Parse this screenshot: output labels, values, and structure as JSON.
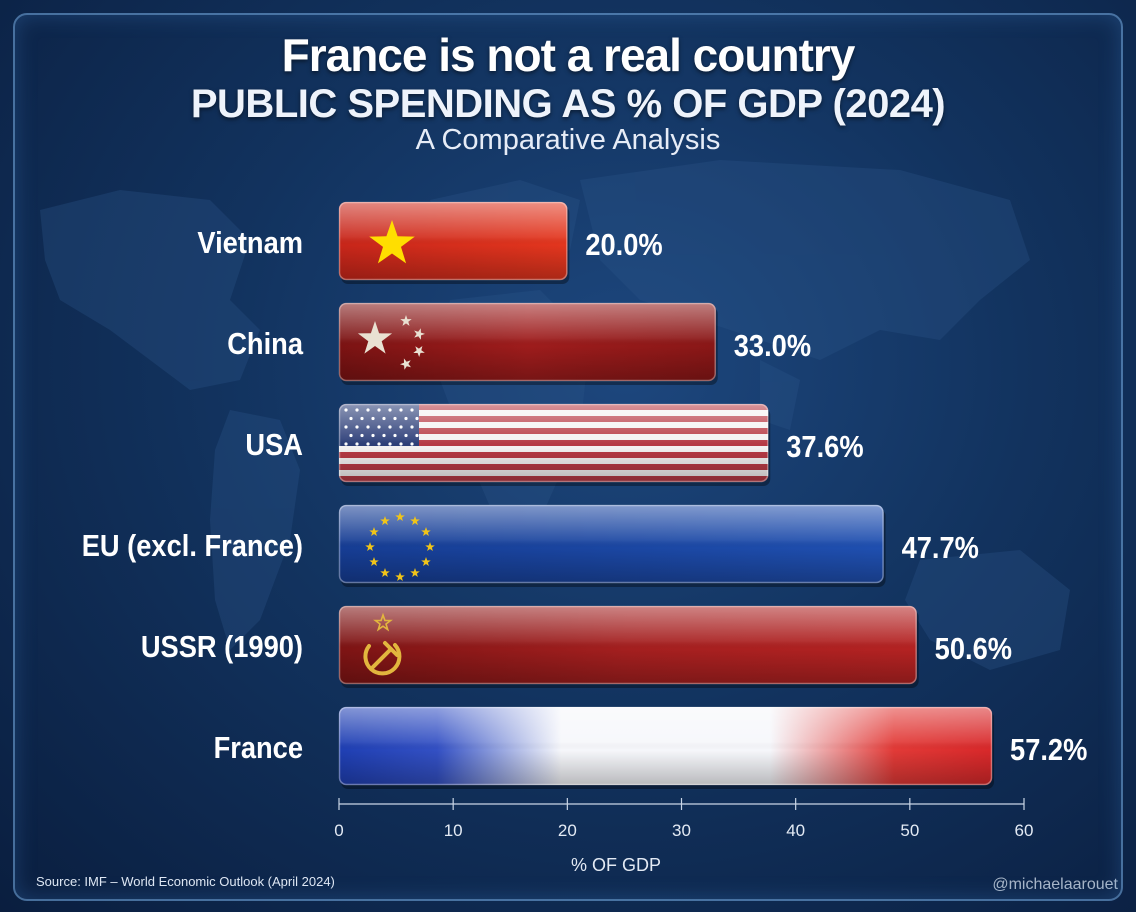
{
  "title": "France is not a real country",
  "subtitle": "PUBLIC SPENDING AS % OF GDP (2024)",
  "tagline": "A Comparative Analysis",
  "source": "Source: IMF – World Economic Outlook (April 2024)",
  "watermark": "@michaelaarouet",
  "colors": {
    "vietnam": "#e3361e",
    "china": "#9e1c1c",
    "usa_stripe_red": "#b83a45",
    "usa_canton": "#2c3e78",
    "eu": "#1f4fb0",
    "ussr": "#a41f1f",
    "france_blue": "#1f3fb3",
    "france_red": "#d8282a",
    "star_yellow": "#ffde00",
    "background": "#12335f"
  },
  "chart_data": {
    "type": "bar",
    "orientation": "horizontal",
    "categories": [
      "Vietnam",
      "China",
      "USA",
      "EU (excl. France)",
      "USSR (1990)",
      "France"
    ],
    "values": [
      20.0,
      33.0,
      37.6,
      47.7,
      50.6,
      57.2
    ],
    "value_labels": [
      "20.0%",
      "33.0%",
      "37.6%",
      "47.7%",
      "50.6%",
      "57.2%"
    ],
    "bar_styles": [
      "vietnam-flag",
      "china-flag",
      "usa-flag",
      "eu-flag",
      "ussr-flag",
      "france-flag"
    ],
    "xlabel": "% OF GDP",
    "xlim": [
      0,
      60
    ],
    "xticks": [
      0,
      10,
      20,
      30,
      40,
      50,
      60
    ],
    "grid": false,
    "legend": "none"
  }
}
